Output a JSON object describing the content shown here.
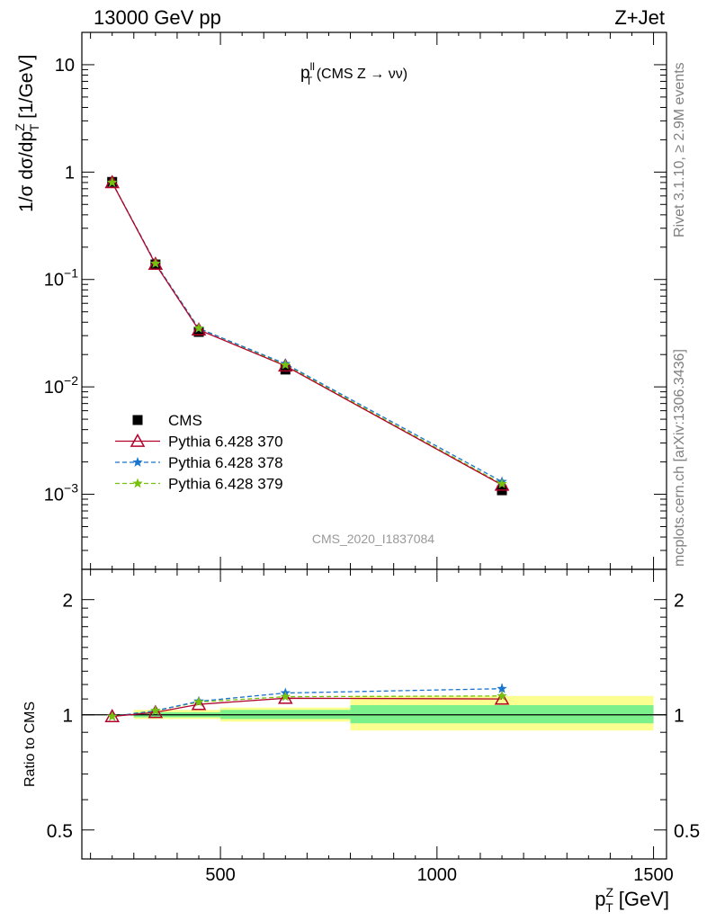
{
  "header": {
    "left": "13000 GeV pp",
    "right": "Z+Jet"
  },
  "side_labels": {
    "rivet": "Rivet 3.1.10, ≥ 2.9M events",
    "mcplots": "mcplots.cern.ch [arXiv:1306.3436]"
  },
  "plot_title": {
    "main": "p",
    "sup": "ll",
    "sub": "T",
    "rest": " (CMS Z → νν)"
  },
  "analysis_tag": "CMS_2020_I1837084",
  "ylabel_main": {
    "part1": "1/σ dσ/dp",
    "sup": "Z",
    "sub": "T",
    "part2": " [1/GeV]"
  },
  "ylabel_ratio": "Ratio to CMS",
  "xlabel": {
    "main": "p",
    "sup": "Z",
    "sub": "T",
    "rest": " [GeV]"
  },
  "colors": {
    "cms": "#000000",
    "p370": "#b2002a",
    "p378": "#1874cd",
    "p379": "#77c00d",
    "band_inner": "#7cf08a",
    "band_outer": "#fbff8f"
  },
  "chart_data": [
    {
      "type": "line",
      "panel": "main",
      "y_scale": "log",
      "xlim": [
        180,
        1530
      ],
      "ylim": [
        0.0002,
        20
      ],
      "x_ticks": [
        500,
        1000,
        1500
      ],
      "y_ticks": [
        {
          "value": 10,
          "label": "10",
          "sup": ""
        },
        {
          "value": 1,
          "label": "1",
          "sup": ""
        },
        {
          "value": 0.1,
          "label": "10",
          "sup": "−1"
        },
        {
          "value": 0.01,
          "label": "10",
          "sup": "−2"
        },
        {
          "value": 0.001,
          "label": "10",
          "sup": "−3"
        }
      ],
      "x": [
        250,
        350,
        450,
        650,
        1150
      ],
      "x_bins": [
        [
          200,
          300
        ],
        [
          300,
          400
        ],
        [
          400,
          500
        ],
        [
          500,
          800
        ],
        [
          800,
          1500
        ]
      ],
      "legend_position": "lower-left",
      "series": [
        {
          "name": "CMS",
          "key": "cms",
          "marker": "square",
          "values": [
            0.81,
            0.138,
            0.0325,
            0.0145,
            0.00109
          ]
        },
        {
          "name": "Pythia 6.428 370",
          "key": "p370",
          "marker": "triangle-open",
          "line": "solid",
          "values": [
            0.8,
            0.139,
            0.034,
            0.0157,
            0.00122
          ]
        },
        {
          "name": "Pythia 6.428 378",
          "key": "p378",
          "marker": "star",
          "line": "dashed",
          "values": [
            0.8,
            0.141,
            0.035,
            0.0164,
            0.00131
          ]
        },
        {
          "name": "Pythia 6.428 379",
          "key": "p379",
          "marker": "star",
          "line": "dashed",
          "values": [
            0.8,
            0.141,
            0.0352,
            0.016,
            0.00125
          ]
        }
      ]
    },
    {
      "type": "line",
      "panel": "ratio",
      "y_scale": "log",
      "xlim": [
        180,
        1530
      ],
      "ylim": [
        0.42,
        2.4
      ],
      "y_ticks": [
        {
          "value": 0.5,
          "label": "0.5"
        },
        {
          "value": 1,
          "label": "1"
        },
        {
          "value": 2,
          "label": "2"
        }
      ],
      "x_ticks": [
        500,
        1000,
        1500
      ],
      "x_tick_labels": [
        "500",
        "1000",
        "1500"
      ],
      "x": [
        250,
        350,
        450,
        650,
        1150
      ],
      "bands": [
        {
          "x0": 300,
          "x1": 500,
          "inner": [
            0.985,
            1.015
          ],
          "outer": [
            0.975,
            1.03
          ]
        },
        {
          "x0": 500,
          "x1": 800,
          "inner": [
            0.975,
            1.03
          ],
          "outer": [
            0.96,
            1.045
          ]
        },
        {
          "x0": 800,
          "x1": 1500,
          "inner": [
            0.95,
            1.06
          ],
          "outer": [
            0.91,
            1.12
          ]
        }
      ],
      "series": [
        {
          "name": "Pythia 6.428 370",
          "key": "p370",
          "marker": "triangle-open",
          "line": "solid",
          "values": [
            0.99,
            1.015,
            1.065,
            1.105,
            1.1
          ]
        },
        {
          "name": "Pythia 6.428 378",
          "key": "p378",
          "marker": "star",
          "line": "dashed",
          "values": [
            0.99,
            1.025,
            1.085,
            1.14,
            1.17
          ],
          "errors": [
            0,
            0,
            0,
            0,
            0.035
          ]
        },
        {
          "name": "Pythia 6.428 379",
          "key": "p379",
          "marker": "star",
          "line": "dashed",
          "values": [
            0.99,
            1.025,
            1.08,
            1.115,
            1.12
          ]
        }
      ]
    }
  ]
}
